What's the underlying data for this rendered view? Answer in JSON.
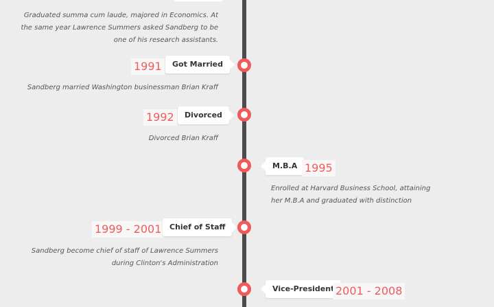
{
  "timeline": {
    "top_description": "Graduated summa cum laude, majored in Economics. At the same year Lawrence Summers asked Sandberg to be one of his research assistants.",
    "events": [
      {
        "year": "1991",
        "title": "Got Married",
        "description": "Sandberg married Washington businessman Brian Kraff"
      },
      {
        "year": "1992",
        "title": "Divorced",
        "description": "Divorced Brian Kraff"
      },
      {
        "year": "1995",
        "title": "M.B.A",
        "description": "Enrolled at Harvard Business School, attaining her M.B.A and graduated with distinction"
      },
      {
        "year": "1999 - 2001",
        "title": "Chief of Staff",
        "description": "Sandberg become chief of staff of Lawrence Summers during Clinton's Administration"
      },
      {
        "year": "2001 - 2008",
        "title": "Vice-President",
        "description": ""
      }
    ]
  },
  "colors": {
    "accent": "#f05a5b",
    "line": "#4b4b4b",
    "background": "#ededed"
  }
}
